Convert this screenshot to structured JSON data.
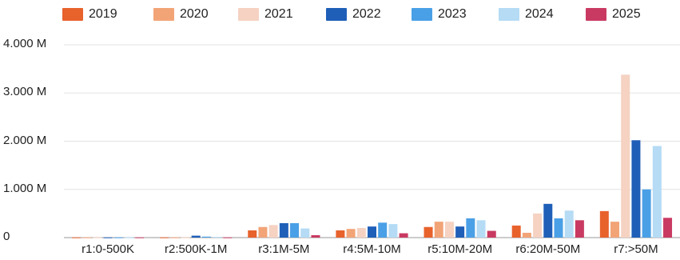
{
  "chart_data": {
    "type": "bar",
    "categories": [
      "r1:0-500K",
      "r2:500K-1M",
      "r3:1M-5M",
      "r4:5M-10M",
      "r5:10M-20M",
      "r6:20M-50M",
      "r7:>50M"
    ],
    "series": [
      {
        "name": "2019",
        "color": "#e8622c",
        "values": [
          5,
          5,
          150,
          150,
          220,
          250,
          550
        ]
      },
      {
        "name": "2020",
        "color": "#f2a477",
        "values": [
          5,
          5,
          220,
          180,
          330,
          100,
          330
        ]
      },
      {
        "name": "2021",
        "color": "#f5d2c2",
        "values": [
          5,
          5,
          260,
          200,
          330,
          500,
          3380
        ]
      },
      {
        "name": "2022",
        "color": "#1f5fb8",
        "values": [
          5,
          40,
          300,
          230,
          230,
          700,
          2020
        ]
      },
      {
        "name": "2023",
        "color": "#4aa0e6",
        "values": [
          5,
          20,
          300,
          310,
          400,
          400,
          1000
        ]
      },
      {
        "name": "2024",
        "color": "#b5dbf5",
        "values": [
          5,
          15,
          190,
          280,
          360,
          560,
          1900
        ]
      },
      {
        "name": "2025",
        "color": "#c93a62",
        "values": [
          5,
          5,
          50,
          90,
          140,
          360,
          410
        ]
      }
    ],
    "yticks": [
      "0",
      "1.000 M",
      "2.000 M",
      "3.000 M",
      "4.000 M"
    ],
    "ytick_values": [
      0,
      1000,
      2000,
      3000,
      4000
    ],
    "ylim": [
      0,
      4000
    ],
    "grid": true,
    "legend_position": "top"
  }
}
